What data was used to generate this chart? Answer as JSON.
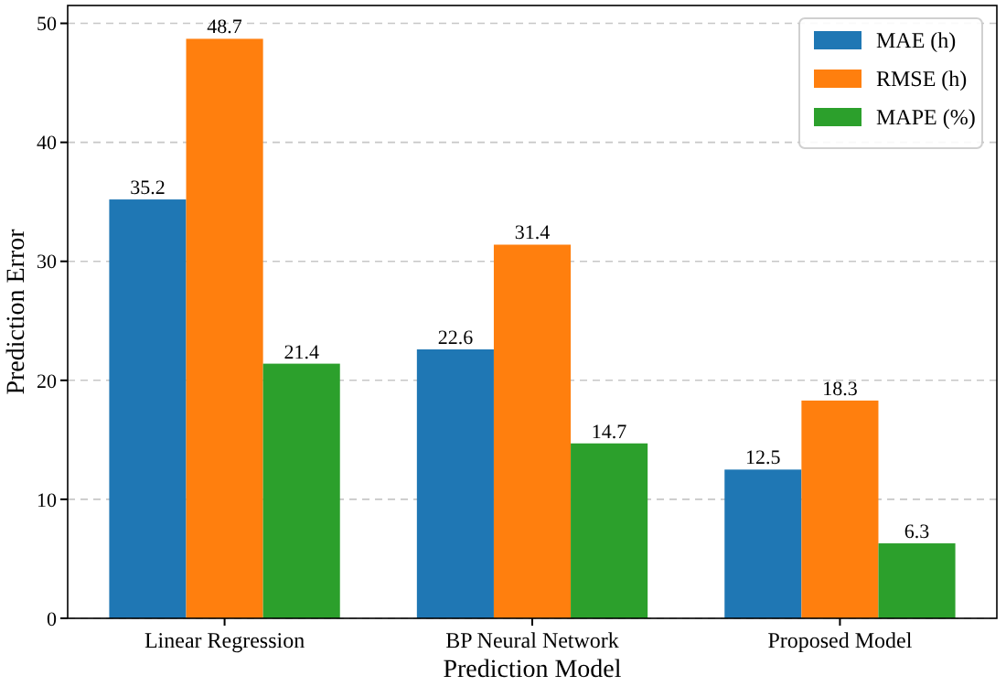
{
  "chart_data": {
    "type": "bar",
    "xlabel": "Prediction Model",
    "ylabel": "Prediction Error",
    "categories": [
      "Linear Regression",
      "BP Neural Network",
      "Proposed Model"
    ],
    "series": [
      {
        "name": "MAE (h)",
        "color": "#1f77b4",
        "values": [
          35.2,
          22.6,
          12.5
        ]
      },
      {
        "name": "RMSE (h)",
        "color": "#ff7f0e",
        "values": [
          48.7,
          31.4,
          18.3
        ]
      },
      {
        "name": "MAPE (%)",
        "color": "#2ca02c",
        "values": [
          21.4,
          14.7,
          6.3
        ]
      }
    ],
    "ylim": [
      0,
      51.5
    ],
    "yticks": [
      0,
      10,
      20,
      30,
      40,
      50
    ],
    "grid": "y",
    "legend": "top right",
    "data_labels": true
  }
}
